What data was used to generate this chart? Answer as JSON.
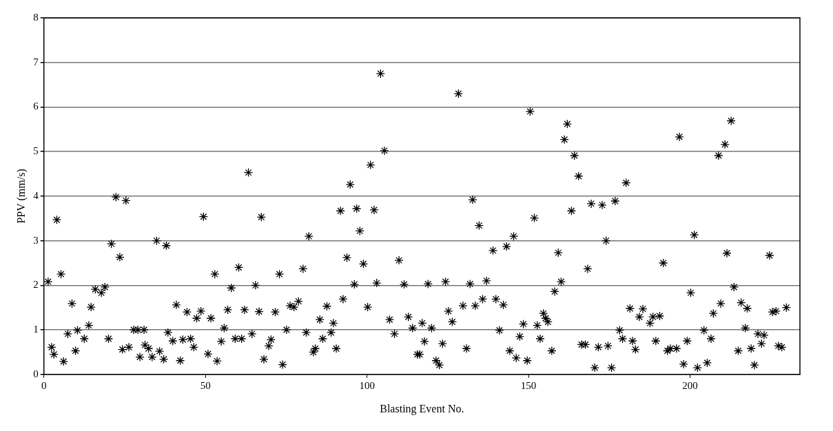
{
  "chart_data": {
    "type": "scatter",
    "xlabel": "Blasting Event No.",
    "ylabel": "PPV (mm/s)",
    "xlim": [
      0,
      234
    ],
    "xticks": [
      0,
      50,
      100,
      150,
      200
    ],
    "ylim": [
      0,
      8
    ],
    "yticks": [
      0,
      1,
      2,
      3,
      4,
      5,
      6,
      7,
      8
    ],
    "grid": "y",
    "marker": "cross",
    "legend": false,
    "series": [
      {
        "color": "#000000",
        "x": [
          1.3,
          4.0,
          5.3,
          2.4,
          3.1,
          6.1,
          7.4,
          8.7,
          9.8,
          10.4,
          12.5,
          13.9,
          14.6,
          15.9,
          17.8,
          18.9,
          20.0,
          20.9,
          22.3,
          23.5,
          25.4,
          24.3,
          26.3,
          27.8,
          29.1,
          31.0,
          29.7,
          31.3,
          32.4,
          33.5,
          34.9,
          35.8,
          37.1,
          37.9,
          38.4,
          39.9,
          41.0,
          42.2,
          43.0,
          44.3,
          45.4,
          46.4,
          47.3,
          48.6,
          49.4,
          50.8,
          51.7,
          52.9,
          53.6,
          54.9,
          55.8,
          56.9,
          58.0,
          59.2,
          60.3,
          61.2,
          62.1,
          63.3,
          64.4,
          65.5,
          66.6,
          67.3,
          68.1,
          69.6,
          70.3,
          71.6,
          72.9,
          73.9,
          75.1,
          76.2,
          77.4,
          78.8,
          80.2,
          82.0,
          81.2,
          83.4,
          84.0,
          85.4,
          86.3,
          87.6,
          88.9,
          89.6,
          90.5,
          91.8,
          92.6,
          93.8,
          94.8,
          96.1,
          96.8,
          97.8,
          98.9,
          100.2,
          101.1,
          102.2,
          103.0,
          104.2,
          105.4,
          107.0,
          108.5,
          109.9,
          111.5,
          112.8,
          114.1,
          115.6,
          116.3,
          117.1,
          117.8,
          118.9,
          120.0,
          121.4,
          122.4,
          123.4,
          124.3,
          125.2,
          126.4,
          128.3,
          129.7,
          130.8,
          131.9,
          132.7,
          133.5,
          134.7,
          135.8,
          137.0,
          139.0,
          139.9,
          141.0,
          142.2,
          143.2,
          144.2,
          145.4,
          146.2,
          147.3,
          148.4,
          149.6,
          150.5,
          151.8,
          152.7,
          153.6,
          154.6,
          155.3,
          156.0,
          157.2,
          158.1,
          159.2,
          160.1,
          161.1,
          162.0,
          163.3,
          164.2,
          165.5,
          166.4,
          167.6,
          168.3,
          169.4,
          170.5,
          171.6,
          172.8,
          174.0,
          174.6,
          175.7,
          176.8,
          178.2,
          179.1,
          180.2,
          181.4,
          182.2,
          183.1,
          184.3,
          185.4,
          187.6,
          188.5,
          189.4,
          190.6,
          191.7,
          193.0,
          193.9,
          195.8,
          196.7,
          198.0,
          199.1,
          200.2,
          201.3,
          202.3,
          204.3,
          205.3,
          206.5,
          207.2,
          208.8,
          209.5,
          210.8,
          211.4,
          212.7,
          213.6,
          214.9,
          215.8,
          217.1,
          217.7,
          218.9,
          219.9,
          221.0,
          222.1,
          222.9,
          224.6,
          225.5,
          226.6,
          227.3,
          228.4,
          229.8
        ],
        "values": [
          2.08,
          3.47,
          2.25,
          0.61,
          0.45,
          0.29,
          0.91,
          1.59,
          0.53,
          0.99,
          0.8,
          1.1,
          1.51,
          1.91,
          1.83,
          1.96,
          0.8,
          2.93,
          3.98,
          2.63,
          3.9,
          0.56,
          0.61,
          1.0,
          1.0,
          1.0,
          0.39,
          0.66,
          0.58,
          0.39,
          3.0,
          0.52,
          0.34,
          2.89,
          0.94,
          0.75,
          1.56,
          0.31,
          0.78,
          1.4,
          0.8,
          0.61,
          1.26,
          1.42,
          3.54,
          0.46,
          1.26,
          2.25,
          0.3,
          0.74,
          1.04,
          1.45,
          1.94,
          0.8,
          2.4,
          0.8,
          1.45,
          4.53,
          0.91,
          2.0,
          1.41,
          3.53,
          0.34,
          0.64,
          0.78,
          1.4,
          2.25,
          0.22,
          1.0,
          1.54,
          1.51,
          1.64,
          2.37,
          3.1,
          0.94,
          0.5,
          0.58,
          1.23,
          0.8,
          1.53,
          0.94,
          1.15,
          0.58,
          3.67,
          1.69,
          2.62,
          4.26,
          2.02,
          3.72,
          3.22,
          2.48,
          1.51,
          4.7,
          3.69,
          2.05,
          6.75,
          5.02,
          1.23,
          0.91,
          2.56,
          2.02,
          1.29,
          1.04,
          0.45,
          0.45,
          1.15,
          0.74,
          2.03,
          1.04,
          0.31,
          0.21,
          0.69,
          2.08,
          1.42,
          1.18,
          6.3,
          1.54,
          0.58,
          2.03,
          3.92,
          1.54,
          3.34,
          1.69,
          2.1,
          2.78,
          1.69,
          0.99,
          1.56,
          2.87,
          0.53,
          3.1,
          0.37,
          0.85,
          1.13,
          0.31,
          5.9,
          3.51,
          1.1,
          0.8,
          1.37,
          1.26,
          1.18,
          0.53,
          1.86,
          2.73,
          2.08,
          5.27,
          5.62,
          3.67,
          4.91,
          4.45,
          0.67,
          0.67,
          2.37,
          3.83,
          0.15,
          0.61,
          3.8,
          3.0,
          0.64,
          0.15,
          3.89,
          0.99,
          0.8,
          4.3,
          1.48,
          0.75,
          0.56,
          1.29,
          1.47,
          1.15,
          1.29,
          0.75,
          1.31,
          2.5,
          0.53,
          0.58,
          0.58,
          5.33,
          0.23,
          0.75,
          1.83,
          3.13,
          0.15,
          0.99,
          0.26,
          0.8,
          1.37,
          4.91,
          1.59,
          5.16,
          2.72,
          5.69,
          1.96,
          0.53,
          1.61,
          1.04,
          1.48,
          0.58,
          0.21,
          0.91,
          0.69,
          0.88,
          2.67,
          1.4,
          1.42,
          0.64,
          0.61,
          1.5
        ]
      }
    ]
  }
}
